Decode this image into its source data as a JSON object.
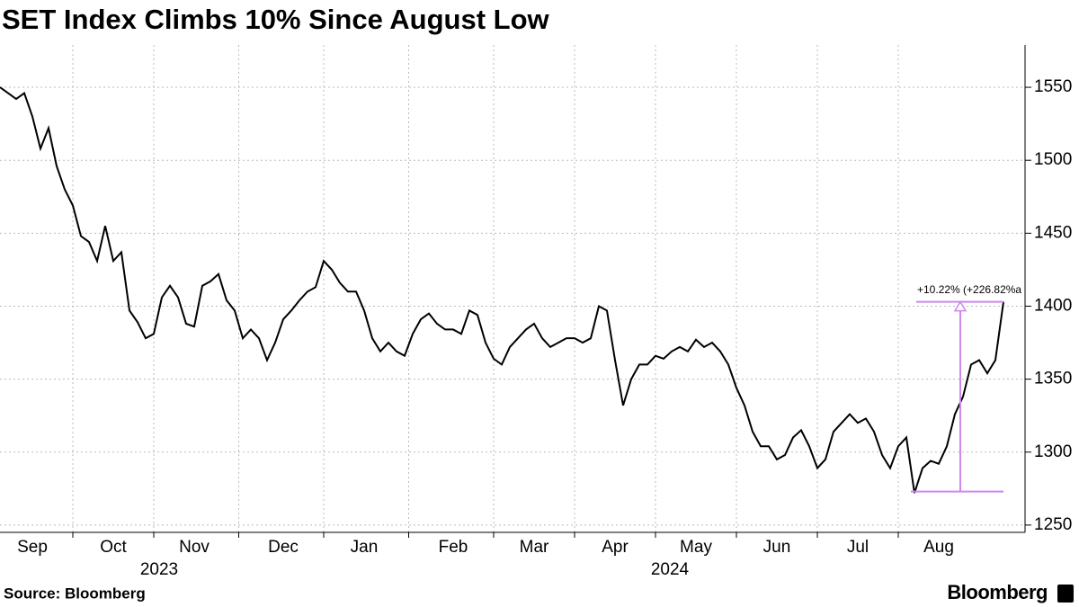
{
  "chart_data": {
    "type": "line",
    "title": "SET Index Climbs 10% Since August Low",
    "source": "Source: Bloomberg",
    "brand": "Bloomberg",
    "years": [
      "2023",
      "2024"
    ],
    "categories": [
      null,
      null,
      null,
      null,
      "Sep",
      null,
      null,
      null,
      null,
      null,
      null,
      null,
      null,
      null,
      "Oct",
      null,
      null,
      null,
      null,
      null,
      null,
      null,
      null,
      null,
      "Nov",
      null,
      null,
      null,
      null,
      null,
      null,
      null,
      null,
      null,
      null,
      "Dec",
      null,
      null,
      null,
      null,
      null,
      null,
      null,
      null,
      null,
      "Jan",
      null,
      null,
      null,
      null,
      null,
      null,
      null,
      null,
      null,
      null,
      "Feb",
      null,
      null,
      null,
      null,
      null,
      null,
      null,
      null,
      null,
      "Mar",
      null,
      null,
      null,
      null,
      null,
      null,
      null,
      null,
      null,
      "Apr",
      null,
      null,
      null,
      null,
      null,
      null,
      null,
      null,
      null,
      "May",
      null,
      null,
      null,
      null,
      null,
      null,
      null,
      null,
      null,
      "Jun",
      null,
      null,
      null,
      null,
      null,
      null,
      null,
      null,
      null,
      "Jul",
      null,
      null,
      null,
      null,
      null,
      null,
      null,
      null,
      null,
      "Aug",
      null,
      null,
      null,
      null,
      null,
      null,
      null,
      null
    ],
    "series": [
      {
        "name": "SET Index",
        "color": "#000000",
        "values": [
          1550,
          1546,
          1542,
          1546,
          1530,
          1508,
          1522,
          1496,
          1480,
          1469,
          1448,
          1444,
          1431,
          1455,
          1431,
          1437,
          1397,
          1389,
          1378,
          1381,
          1406,
          1414,
          1406,
          1388,
          1386,
          1414,
          1417,
          1422,
          1404,
          1397,
          1378,
          1384,
          1378,
          1363,
          1375,
          1391,
          1397,
          1404,
          1410,
          1413,
          1431,
          1425,
          1416,
          1410,
          1410,
          1397,
          1378,
          1369,
          1375,
          1369,
          1366,
          1381,
          1391,
          1395,
          1388,
          1384,
          1384,
          1381,
          1397,
          1394,
          1375,
          1364,
          1360,
          1372,
          1378,
          1384,
          1388,
          1378,
          1372,
          1375,
          1378,
          1378,
          1375,
          1378,
          1400,
          1397,
          1363,
          1332,
          1350,
          1360,
          1360,
          1366,
          1364,
          1369,
          1372,
          1369,
          1377,
          1372,
          1375,
          1369,
          1360,
          1344,
          1332,
          1314,
          1304,
          1304,
          1295,
          1298,
          1310,
          1315,
          1304,
          1289,
          1295,
          1314,
          1320,
          1326,
          1320,
          1323,
          1314,
          1298,
          1289,
          1304,
          1310,
          1272,
          1289,
          1294,
          1292,
          1304,
          1326,
          1338,
          1360,
          1363,
          1354,
          1363,
          1403
        ]
      }
    ],
    "ylim": [
      1245,
      1579
    ],
    "yticks": [
      1250,
      1300,
      1350,
      1400,
      1450,
      1500,
      1550
    ],
    "grid": true,
    "annotation": {
      "text": "+10.22% (+226.82%a",
      "from": 1273,
      "to": 1403,
      "color": "#cc88ee"
    }
  }
}
